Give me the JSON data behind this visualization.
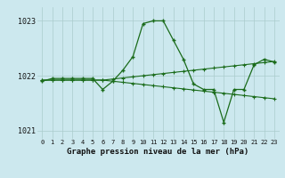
{
  "title": "Graphe pression niveau de la mer (hPa)",
  "background_color": "#cce8ee",
  "grid_color": "#aacccc",
  "line_color": "#1a6b1a",
  "x_labels": [
    "0",
    "1",
    "2",
    "3",
    "4",
    "5",
    "6",
    "7",
    "8",
    "9",
    "10",
    "11",
    "12",
    "13",
    "14",
    "15",
    "16",
    "17",
    "18",
    "19",
    "20",
    "21",
    "22",
    "23"
  ],
  "x_values": [
    0,
    1,
    2,
    3,
    4,
    5,
    6,
    7,
    8,
    9,
    10,
    11,
    12,
    13,
    14,
    15,
    16,
    17,
    18,
    19,
    20,
    21,
    22,
    23
  ],
  "line1_y": [
    1021.9,
    1021.95,
    1021.95,
    1021.95,
    1021.95,
    1021.95,
    1021.75,
    1021.9,
    1022.1,
    1022.35,
    1022.95,
    1023.0,
    1023.0,
    1022.65,
    1022.3,
    1021.85,
    1021.75,
    1021.75,
    1021.15,
    1021.75,
    1021.75,
    1022.2,
    1022.3,
    1022.25
  ],
  "line2_y": [
    1021.92,
    1021.92,
    1021.92,
    1021.92,
    1021.92,
    1021.92,
    1021.92,
    1021.94,
    1021.96,
    1021.98,
    1022.0,
    1022.02,
    1022.04,
    1022.06,
    1022.08,
    1022.1,
    1022.12,
    1022.14,
    1022.16,
    1022.18,
    1022.2,
    1022.22,
    1022.24,
    1022.26
  ],
  "line3_y": [
    1021.92,
    1021.92,
    1021.92,
    1021.92,
    1021.92,
    1021.92,
    1021.92,
    1021.9,
    1021.88,
    1021.86,
    1021.84,
    1021.82,
    1021.8,
    1021.78,
    1021.76,
    1021.74,
    1021.72,
    1021.7,
    1021.68,
    1021.66,
    1021.64,
    1021.62,
    1021.6,
    1021.58
  ],
  "ylim": [
    1020.85,
    1023.25
  ],
  "yticks": [
    1021,
    1022,
    1023
  ],
  "figsize": [
    3.2,
    2.0
  ],
  "dpi": 100
}
